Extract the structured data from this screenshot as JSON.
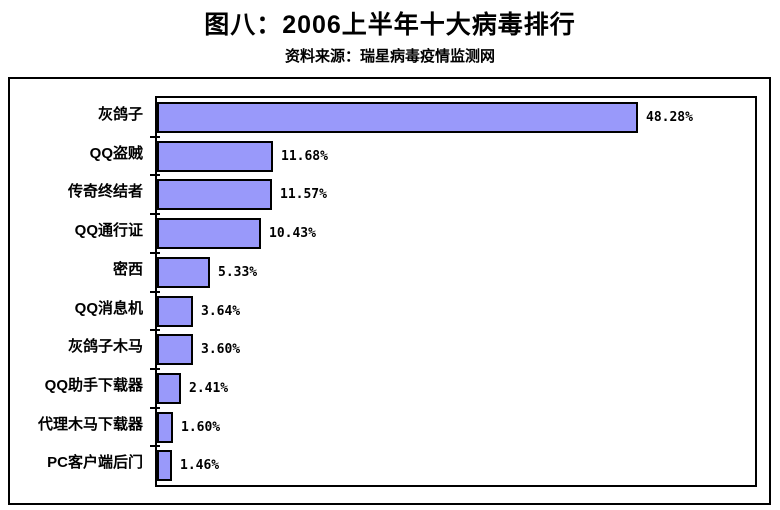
{
  "header": {
    "title": "图八：2006上半年十大病毒排行",
    "source": "资料来源：瑞星病毒疫情监测网"
  },
  "chart_data": {
    "type": "bar",
    "orientation": "horizontal",
    "title": "图八：2006上半年十大病毒排行",
    "source_note": "资料来源：瑞星病毒疫情监测网",
    "categories": [
      "灰鸽子",
      "QQ盗贼",
      "传奇终结者",
      "QQ通行证",
      "密西",
      "QQ消息机",
      "灰鸽子木马",
      "QQ助手下载器",
      "代理木马下载器",
      "PC客户端后门"
    ],
    "values": [
      48.28,
      11.68,
      11.57,
      10.43,
      5.33,
      3.64,
      3.6,
      2.41,
      1.6,
      1.46
    ],
    "value_labels": [
      "48.28%",
      "11.68%",
      "11.57%",
      "10.43%",
      "5.33%",
      "3.64%",
      "3.60%",
      "2.41%",
      "1.60%",
      "1.46%"
    ],
    "xlabel": "",
    "ylabel": "",
    "xlim": [
      0,
      60
    ],
    "grid": false,
    "legend": null,
    "bar_color": "#9999FA",
    "bar_border_color": "#000000",
    "plot_border_color": "#000000",
    "background_color": "#FFFFFF"
  }
}
